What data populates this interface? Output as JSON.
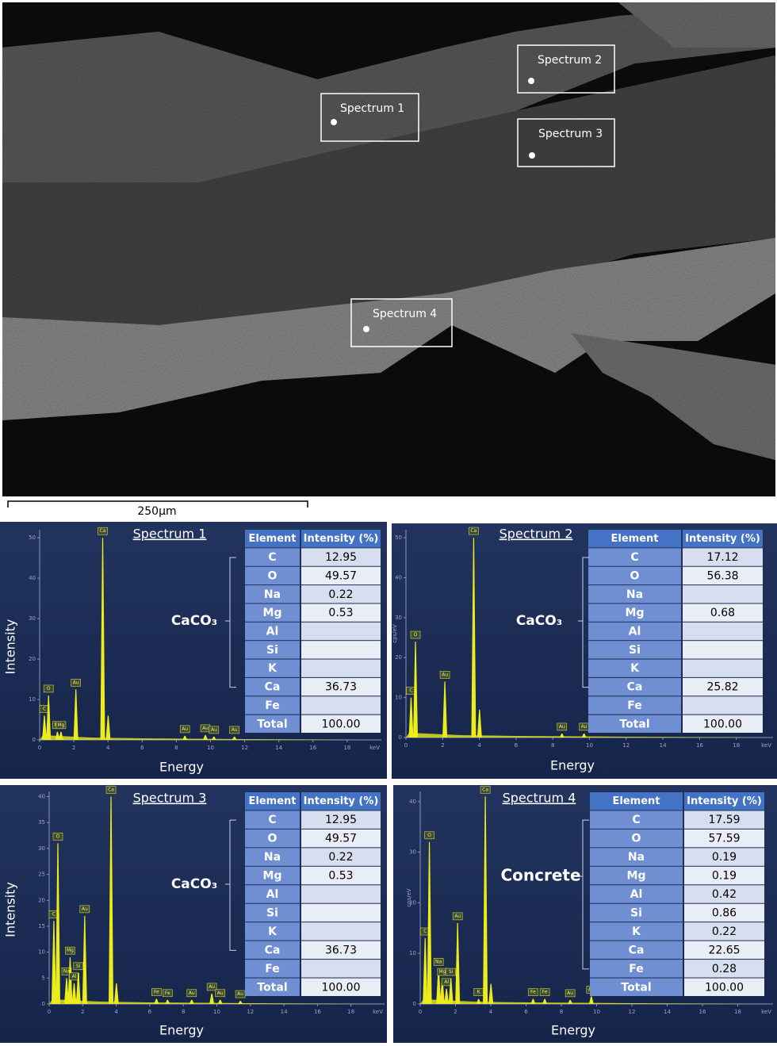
{
  "sem": {
    "spectrum_labels": [
      "Spectrum 1",
      "Spectrum 2",
      "Spectrum 3",
      "Spectrum 4"
    ],
    "scale_bar": "250µm"
  },
  "panels": [
    {
      "title": "Spectrum 1",
      "group_label": "CaCO₃",
      "x_label": "Energy",
      "y_label": "Intensity",
      "table": {
        "header": [
          "Element",
          "Intensity (%)"
        ],
        "rows": [
          [
            "C",
            "12.95"
          ],
          [
            "O",
            "49.57"
          ],
          [
            "Na",
            "0.22"
          ],
          [
            "Mg",
            "0.53"
          ],
          [
            "Al",
            null
          ],
          [
            "Si",
            null
          ],
          [
            "K",
            null
          ],
          [
            "Ca",
            "36.73"
          ],
          [
            "Fe",
            null
          ],
          [
            "Total",
            "100.00"
          ]
        ]
      },
      "spectrum": {
        "xlim": [
          0,
          20
        ],
        "xticks": [
          0,
          2,
          4,
          6,
          8,
          10,
          12,
          14,
          16,
          18
        ],
        "x_unit": "keV",
        "ylim": [
          0,
          52
        ],
        "yticks": [
          0,
          10,
          20,
          30,
          40,
          50
        ],
        "peaks": [
          {
            "label": "C",
            "energy": 0.28,
            "intensity": 6
          },
          {
            "label": "O",
            "energy": 0.52,
            "intensity": 11
          },
          {
            "label": "Na",
            "energy": 1.04,
            "intensity": 2
          },
          {
            "label": "Mg",
            "energy": 1.25,
            "intensity": 2
          },
          {
            "label": "Au",
            "energy": 2.12,
            "intensity": 12.5
          },
          {
            "label": "Ca",
            "energy": 3.69,
            "intensity": 50
          },
          {
            "label": null,
            "energy": 4.01,
            "intensity": 6
          },
          {
            "label": "Au",
            "energy": 8.5,
            "intensity": 1
          },
          {
            "label": "Au",
            "energy": 9.7,
            "intensity": 1.2
          },
          {
            "label": "Au",
            "energy": 10.2,
            "intensity": 0.8
          },
          {
            "label": "Au",
            "energy": 11.4,
            "intensity": 0.8
          }
        ]
      }
    },
    {
      "title": "Spectrum 2",
      "group_label": "CaCO₃",
      "x_label": "Energy",
      "table": {
        "header": [
          "Element",
          "Intensity (%)"
        ],
        "rows": [
          [
            "C",
            "17.12"
          ],
          [
            "O",
            "56.38"
          ],
          [
            "Na",
            null
          ],
          [
            "Mg",
            "0.68"
          ],
          [
            "Al",
            null
          ],
          [
            "Si",
            null
          ],
          [
            "K",
            null
          ],
          [
            "Ca",
            "25.82"
          ],
          [
            "Fe",
            null
          ],
          [
            "Total",
            "100.00"
          ]
        ]
      },
      "spectrum": {
        "xlim": [
          0,
          20
        ],
        "xticks": [
          0,
          2,
          4,
          6,
          8,
          10,
          12,
          14,
          16,
          18
        ],
        "x_unit": "keV",
        "y_unit": "cps/eV",
        "ylim": [
          0,
          52
        ],
        "yticks": [
          0,
          10,
          20,
          30,
          40,
          50
        ],
        "peaks": [
          {
            "label": "C",
            "energy": 0.28,
            "intensity": 10
          },
          {
            "label": "O",
            "energy": 0.52,
            "intensity": 24
          },
          {
            "label": "Au",
            "energy": 2.12,
            "intensity": 14
          },
          {
            "label": "Ca",
            "energy": 3.69,
            "intensity": 50
          },
          {
            "label": null,
            "energy": 4.01,
            "intensity": 7
          },
          {
            "label": "Au",
            "energy": 8.5,
            "intensity": 1
          },
          {
            "label": "Au",
            "energy": 9.7,
            "intensity": 1
          }
        ]
      }
    },
    {
      "title": "Spectrum 3",
      "group_label": "CaCO₃",
      "x_label": "Energy",
      "y_label": "Intensity",
      "table": {
        "header": [
          "Element",
          "Intensity (%)"
        ],
        "rows": [
          [
            "C",
            "12.95"
          ],
          [
            "O",
            "49.57"
          ],
          [
            "Na",
            "0.22"
          ],
          [
            "Mg",
            "0.53"
          ],
          [
            "Al",
            null
          ],
          [
            "Si",
            null
          ],
          [
            "K",
            null
          ],
          [
            "Ca",
            "36.73"
          ],
          [
            "Fe",
            null
          ],
          [
            "Total",
            "100.00"
          ]
        ]
      },
      "spectrum": {
        "xlim": [
          0,
          20
        ],
        "xticks": [
          0,
          2,
          4,
          6,
          8,
          10,
          12,
          14,
          16,
          18
        ],
        "x_unit": "keV",
        "ylim": [
          0,
          41
        ],
        "yticks": [
          0,
          5,
          10,
          15,
          20,
          25,
          30,
          35,
          40
        ],
        "peaks": [
          {
            "label": "C",
            "energy": 0.28,
            "intensity": 16
          },
          {
            "label": "O",
            "energy": 0.52,
            "intensity": 31
          },
          {
            "label": "Na",
            "energy": 1.04,
            "intensity": 5
          },
          {
            "label": "Mg",
            "energy": 1.25,
            "intensity": 9
          },
          {
            "label": "Al",
            "energy": 1.49,
            "intensity": 4
          },
          {
            "label": "Si",
            "energy": 1.74,
            "intensity": 6
          },
          {
            "label": "Au",
            "energy": 2.12,
            "intensity": 17
          },
          {
            "label": "Ca",
            "energy": 3.69,
            "intensity": 40
          },
          {
            "label": null,
            "energy": 4.01,
            "intensity": 4
          },
          {
            "label": "Fe",
            "energy": 6.4,
            "intensity": 1
          },
          {
            "label": "Fe",
            "energy": 7.06,
            "intensity": 0.8
          },
          {
            "label": "Au",
            "energy": 8.5,
            "intensity": 0.8
          },
          {
            "label": "Au",
            "energy": 9.7,
            "intensity": 2
          },
          {
            "label": "Au",
            "energy": 10.2,
            "intensity": 0.8
          },
          {
            "label": "Au",
            "energy": 11.4,
            "intensity": 0.6
          }
        ]
      }
    },
    {
      "title": "Spectrum 4",
      "group_label": "Concrete",
      "x_label": "Energy",
      "table": {
        "header": [
          "Element",
          "Intensity (%)"
        ],
        "rows": [
          [
            "C",
            "17.59"
          ],
          [
            "O",
            "57.59"
          ],
          [
            "Na",
            "0.19"
          ],
          [
            "Mg",
            "0.19"
          ],
          [
            "Al",
            "0.42"
          ],
          [
            "Si",
            "0.86"
          ],
          [
            "K",
            "0.22"
          ],
          [
            "Ca",
            "22.65"
          ],
          [
            "Fe",
            "0.28"
          ],
          [
            "Total",
            "100.00"
          ]
        ]
      },
      "spectrum": {
        "xlim": [
          0,
          20
        ],
        "xticks": [
          0,
          2,
          4,
          6,
          8,
          10,
          12,
          14,
          16,
          18
        ],
        "x_unit": "keV",
        "y_unit": "cps/eV",
        "ylim": [
          0,
          42
        ],
        "yticks": [
          0,
          10,
          20,
          30,
          40
        ],
        "peaks": [
          {
            "label": "C",
            "energy": 0.28,
            "intensity": 13
          },
          {
            "label": "O",
            "energy": 0.52,
            "intensity": 32
          },
          {
            "label": "Na",
            "energy": 1.04,
            "intensity": 7
          },
          {
            "label": "Mg",
            "energy": 1.25,
            "intensity": 5
          },
          {
            "label": "Al",
            "energy": 1.49,
            "intensity": 3
          },
          {
            "label": "Si",
            "energy": 1.74,
            "intensity": 5
          },
          {
            "label": "Au",
            "energy": 2.12,
            "intensity": 16
          },
          {
            "label": "K",
            "energy": 3.31,
            "intensity": 1
          },
          {
            "label": "Ca",
            "energy": 3.69,
            "intensity": 41
          },
          {
            "label": null,
            "energy": 4.01,
            "intensity": 4
          },
          {
            "label": "Fe",
            "energy": 6.4,
            "intensity": 1
          },
          {
            "label": "Fe",
            "energy": 7.06,
            "intensity": 1
          },
          {
            "label": "Au",
            "energy": 8.5,
            "intensity": 0.8
          },
          {
            "label": "Au",
            "energy": 9.7,
            "intensity": 1.5
          }
        ]
      }
    }
  ]
}
